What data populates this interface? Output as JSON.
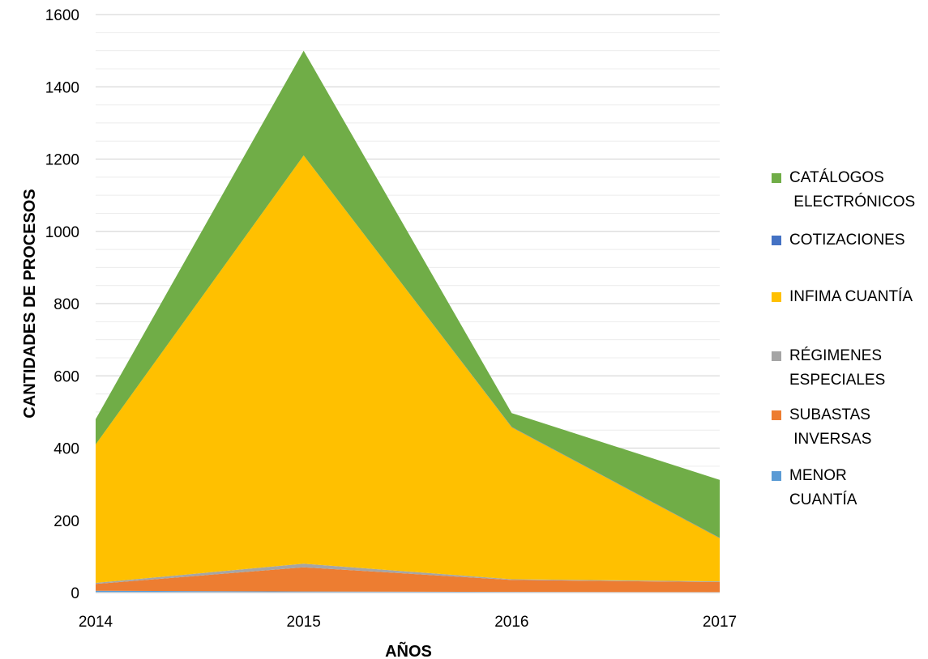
{
  "chart_data": {
    "type": "area",
    "stacked": true,
    "title": "",
    "xlabel": "AÑOS",
    "ylabel": "CANTIDADES DE PROCESOS",
    "x": [
      "2014",
      "2015",
      "2016",
      "2017"
    ],
    "ylim": [
      0,
      1600
    ],
    "yticks": [
      0,
      200,
      400,
      600,
      800,
      1000,
      1200,
      1400,
      1600
    ],
    "grid": true,
    "legend_position": "right",
    "series": [
      {
        "name": "MENOR CUANTÍA",
        "color": "#5b9bd5",
        "values": [
          5,
          3,
          2,
          1
        ]
      },
      {
        "name": "SUBASTAS INVERSAS",
        "color": "#ed7d31",
        "values": [
          19,
          67,
          33,
          28
        ]
      },
      {
        "name": "RÉGIMENES ESPECIALES",
        "color": "#a5a5a5",
        "values": [
          3,
          10,
          2,
          2
        ]
      },
      {
        "name": "INFIMA CUANTÍA",
        "color": "#ffc000",
        "values": [
          383,
          1130,
          421,
          120
        ]
      },
      {
        "name": "COTIZACIONES",
        "color": "#4472c4",
        "values": [
          0,
          0,
          1,
          1
        ]
      },
      {
        "name": "CATÁLOGOS ELECTRÓNICOS",
        "color": "#70ad47",
        "values": [
          70,
          290,
          38,
          160
        ]
      }
    ]
  },
  "legend": [
    {
      "color": "#70ad47",
      "label": "CATÁLOGOS\n ELECTRÓNICOS"
    },
    {
      "color": "#4472c4",
      "label": "COTIZACIONES"
    },
    {
      "color": "#ffc000",
      "label": "INFIMA CUANTÍA"
    },
    {
      "color": "#a5a5a5",
      "label": "RÉGIMENES\nESPECIALES"
    },
    {
      "color": "#ed7d31",
      "label": "SUBASTAS\n INVERSAS"
    },
    {
      "color": "#5b9bd5",
      "label": "MENOR\nCUANTÍA"
    }
  ]
}
